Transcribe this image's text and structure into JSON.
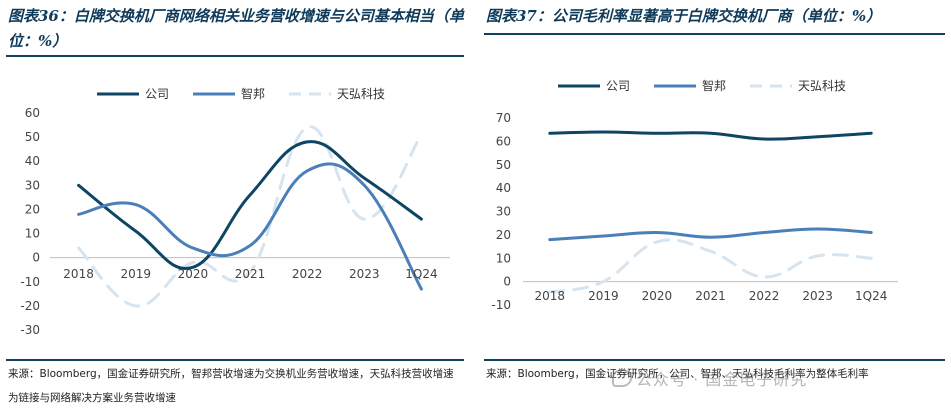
{
  "left": {
    "title": "图表36：白牌交换机厂商网络相关业务营收增速与公司基本相当（单位：%）",
    "source": "来源：Bloomberg，国金证券研究所，智邦营收增速为交换机业务营收增速，天弘科技营收增速为链接与网络解决方案业务营收增速"
  },
  "right": {
    "title": "图表37：公司毛利率显著高于白牌交换机厂商（单位：%）",
    "source": "来源：Bloomberg，国金证券研究所，公司、智邦、天弘科技毛利率为整体毛利率"
  },
  "watermark": "公众号 · 国金电子研究",
  "chart_data": [
    {
      "type": "line",
      "x": [
        "2018",
        "2019",
        "2020",
        "2021",
        "2022",
        "2023",
        "1Q24"
      ],
      "series": [
        {
          "name": "公司",
          "values": [
            30,
            11,
            -4,
            26,
            48,
            33,
            16
          ],
          "color": "#0f4564",
          "style": "solid"
        },
        {
          "name": "智邦",
          "values": [
            18,
            22,
            4,
            5,
            36,
            30,
            -13
          ],
          "color": "#4b7fb9",
          "style": "solid"
        },
        {
          "name": "天弘科技",
          "values": [
            4,
            -20,
            -2,
            -6,
            54,
            16,
            51
          ],
          "color": "#d6e4ef",
          "style": "dashed"
        }
      ],
      "ylim": [
        -30,
        60
      ],
      "yticks": [
        -30,
        -20,
        -10,
        0,
        10,
        20,
        30,
        40,
        50,
        60
      ],
      "legend": "top"
    },
    {
      "type": "line",
      "x": [
        "2018",
        "2019",
        "2020",
        "2021",
        "2022",
        "2023",
        "1Q24"
      ],
      "series": [
        {
          "name": "公司",
          "values": [
            63.5,
            64,
            63.5,
            63.5,
            61,
            62,
            63.5
          ],
          "color": "#0f4564",
          "style": "solid"
        },
        {
          "name": "智邦",
          "values": [
            18,
            19.5,
            21,
            19,
            21,
            22.5,
            21
          ],
          "color": "#4b7fb9",
          "style": "solid"
        },
        {
          "name": "天弘科技",
          "values": [
            -4.5,
            0,
            17,
            13,
            2,
            11,
            10
          ],
          "color": "#d6e4ef",
          "style": "dashed"
        }
      ],
      "ylim": [
        -10,
        70
      ],
      "yticks": [
        -10,
        0,
        10,
        20,
        30,
        40,
        50,
        60,
        70
      ],
      "legend": "top"
    }
  ]
}
